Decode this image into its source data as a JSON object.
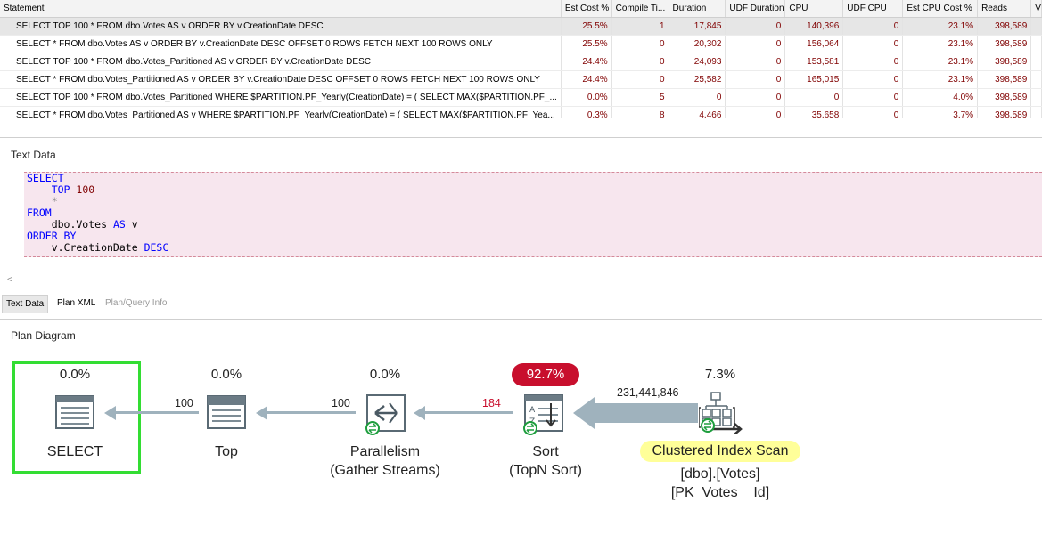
{
  "grid": {
    "columns": [
      "Statement",
      "Est Cost %",
      "Compile Ti...",
      "Duration",
      "UDF Duration",
      "CPU",
      "UDF CPU",
      "Est CPU Cost %",
      "Reads",
      "V"
    ],
    "rows": [
      {
        "statement": "SELECT TOP 100 * FROM dbo.Votes AS v ORDER BY v.CreationDate DESC",
        "est_cost": "25.5%",
        "compile": "1",
        "duration": "17,845",
        "udf_duration": "0",
        "cpu": "140,396",
        "udf_cpu": "0",
        "est_cpu_cost": "23.1%",
        "reads": "398,589"
      },
      {
        "statement": "SELECT * FROM dbo.Votes AS v ORDER BY v.CreationDate DESC OFFSET 0 ROWS FETCH NEXT 100 ROWS ONLY",
        "est_cost": "25.5%",
        "compile": "0",
        "duration": "20,302",
        "udf_duration": "0",
        "cpu": "156,064",
        "udf_cpu": "0",
        "est_cpu_cost": "23.1%",
        "reads": "398,589"
      },
      {
        "statement": "SELECT TOP 100 * FROM dbo.Votes_Partitioned AS v ORDER BY v.CreationDate DESC",
        "est_cost": "24.4%",
        "compile": "0",
        "duration": "24,093",
        "udf_duration": "0",
        "cpu": "153,581",
        "udf_cpu": "0",
        "est_cpu_cost": "23.1%",
        "reads": "398,589"
      },
      {
        "statement": "SELECT * FROM dbo.Votes_Partitioned AS v ORDER BY v.CreationDate DESC OFFSET 0 ROWS FETCH NEXT 100 ROWS ONLY",
        "est_cost": "24.4%",
        "compile": "0",
        "duration": "25,582",
        "udf_duration": "0",
        "cpu": "165,015",
        "udf_cpu": "0",
        "est_cpu_cost": "23.1%",
        "reads": "398,589"
      },
      {
        "statement": "SELECT TOP 100 * FROM dbo.Votes_Partitioned WHERE $PARTITION.PF_Yearly(CreationDate) = ( SELECT MAX($PARTITION.PF_...",
        "est_cost": "0.0%",
        "compile": "5",
        "duration": "0",
        "udf_duration": "0",
        "cpu": "0",
        "udf_cpu": "0",
        "est_cpu_cost": "4.0%",
        "reads": "398,589"
      },
      {
        "statement": "SELECT * FROM dbo.Votes_Partitioned AS v WHERE $PARTITION.PF_Yearly(CreationDate) = ( SELECT MAX($PARTITION.PF_Yea...",
        "est_cost": "0.3%",
        "compile": "8",
        "duration": "4,466",
        "udf_duration": "0",
        "cpu": "35,658",
        "udf_cpu": "0",
        "est_cpu_cost": "3.7%",
        "reads": "398,589"
      }
    ]
  },
  "text_data": {
    "title": "Text Data",
    "lines": [
      [
        {
          "t": "SELECT",
          "c": "kw"
        }
      ],
      [
        {
          "t": "    TOP ",
          "c": "kw"
        },
        {
          "t": "100",
          "c": "num"
        }
      ],
      [
        {
          "t": "    *",
          "c": "op"
        }
      ],
      [
        {
          "t": "FROM",
          "c": "kw"
        }
      ],
      [
        {
          "t": "    dbo.Votes ",
          "c": "id"
        },
        {
          "t": "AS",
          "c": "kw"
        },
        {
          "t": " v",
          "c": "id"
        }
      ],
      [
        {
          "t": "ORDER BY",
          "c": "kw"
        }
      ],
      [
        {
          "t": "    v.CreationDate ",
          "c": "id"
        },
        {
          "t": "DESC",
          "c": "kw"
        }
      ]
    ],
    "scroll_left": "<"
  },
  "tabs": [
    {
      "label": "Text Data",
      "state": "active"
    },
    {
      "label": "Plan XML",
      "state": "normal"
    },
    {
      "label": "Plan/Query Info",
      "state": "dim"
    }
  ],
  "plan": {
    "title": "Plan Diagram",
    "nodes": [
      {
        "id": "select",
        "pct": "0.0%",
        "name": "SELECT",
        "sub": ""
      },
      {
        "id": "top",
        "pct": "0.0%",
        "name": "Top",
        "sub": ""
      },
      {
        "id": "parallelism",
        "pct": "0.0%",
        "name": "Parallelism",
        "sub": "(Gather Streams)"
      },
      {
        "id": "sort",
        "pct": "92.7%",
        "name": "Sort",
        "sub": "(TopN Sort)"
      },
      {
        "id": "scan",
        "pct": "7.3%",
        "name": "Clustered Index Scan",
        "sub": "[dbo].[Votes]",
        "sub2": "[PK_Votes__Id]"
      }
    ],
    "edges": [
      "100",
      "100",
      "184",
      "231,441,846"
    ],
    "colors": {
      "hot": "#c80f2d",
      "highlight": "#ffff99",
      "selected": "#33dd33",
      "arrow": "#9fb2bd"
    }
  }
}
